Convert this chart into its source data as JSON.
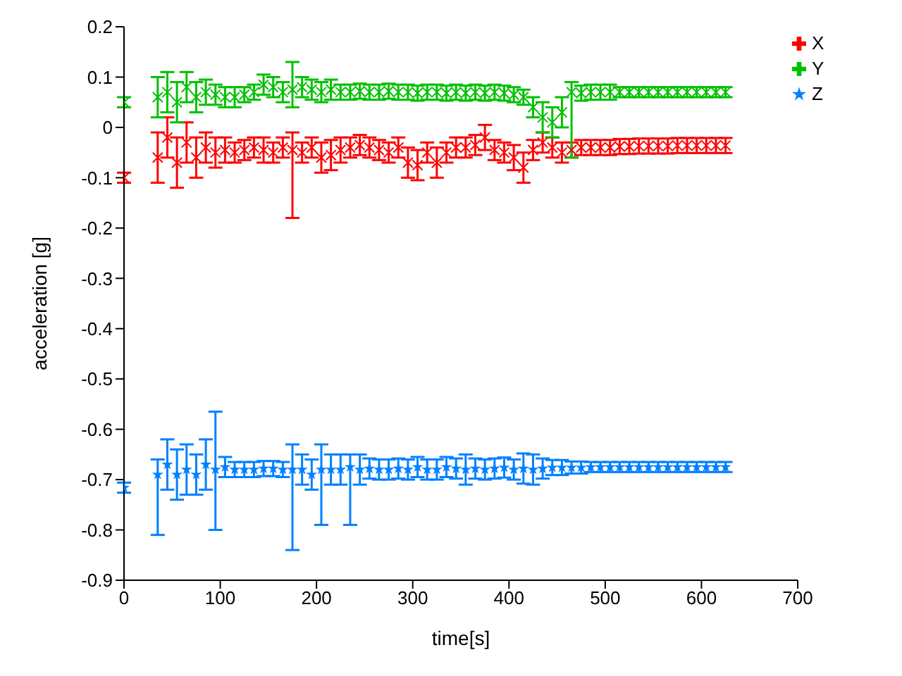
{
  "chart_data": {
    "type": "scatter",
    "xlabel": "time[s]",
    "ylabel": "acceleration [g]",
    "x": [
      0,
      35,
      45,
      55,
      65,
      75,
      85,
      95,
      105,
      115,
      125,
      135,
      145,
      155,
      165,
      175,
      185,
      195,
      205,
      215,
      225,
      235,
      245,
      255,
      265,
      275,
      285,
      295,
      305,
      315,
      325,
      335,
      345,
      355,
      365,
      375,
      385,
      395,
      405,
      415,
      425,
      435,
      445,
      455,
      465,
      475,
      485,
      495,
      505,
      515,
      525,
      535,
      545,
      555,
      565,
      575,
      585,
      595,
      605,
      615,
      625
    ],
    "series": [
      {
        "name": "X",
        "color": "#ff0000",
        "marker": "cross",
        "values": [
          -0.1,
          -0.06,
          -0.02,
          -0.07,
          -0.03,
          -0.06,
          -0.04,
          -0.05,
          -0.045,
          -0.05,
          -0.045,
          -0.04,
          -0.045,
          -0.05,
          -0.04,
          -0.045,
          -0.05,
          -0.04,
          -0.06,
          -0.055,
          -0.045,
          -0.04,
          -0.035,
          -0.04,
          -0.045,
          -0.05,
          -0.04,
          -0.07,
          -0.075,
          -0.05,
          -0.07,
          -0.05,
          -0.04,
          -0.04,
          -0.035,
          -0.02,
          -0.045,
          -0.05,
          -0.06,
          -0.08,
          -0.045,
          -0.03,
          -0.04,
          -0.05,
          -0.045,
          -0.04,
          -0.04,
          -0.04,
          -0.04,
          -0.038,
          -0.038,
          -0.037,
          -0.037,
          -0.037,
          -0.037,
          -0.036,
          -0.036,
          -0.036,
          -0.036,
          -0.036,
          -0.036
        ],
        "errors": [
          0.01,
          0.05,
          0.04,
          0.05,
          0.04,
          0.04,
          0.03,
          0.03,
          0.025,
          0.02,
          0.02,
          0.02,
          0.025,
          0.02,
          0.02,
          [
            -0.18,
            -0.01
          ],
          0.02,
          0.02,
          0.03,
          0.03,
          0.025,
          0.02,
          0.02,
          0.02,
          0.02,
          0.02,
          0.02,
          0.03,
          0.03,
          0.02,
          0.03,
          0.02,
          0.02,
          0.02,
          0.02,
          0.025,
          0.02,
          0.02,
          0.025,
          0.03,
          0.02,
          0.02,
          0.02,
          0.02,
          0.015,
          0.015,
          0.015,
          0.015,
          0.015,
          0.015,
          0.015,
          0.015,
          0.015,
          0.015,
          0.015,
          0.015,
          0.015,
          0.015,
          0.015,
          0.015,
          0.015
        ]
      },
      {
        "name": "Y",
        "color": "#00c000",
        "marker": "cross",
        "values": [
          0.05,
          0.06,
          0.07,
          0.05,
          0.08,
          0.06,
          0.07,
          0.065,
          0.06,
          0.06,
          0.065,
          0.07,
          0.085,
          0.08,
          0.07,
          0.075,
          0.08,
          0.075,
          0.07,
          0.075,
          0.07,
          0.07,
          0.072,
          0.07,
          0.07,
          0.072,
          0.07,
          0.07,
          0.068,
          0.07,
          0.07,
          0.068,
          0.07,
          0.068,
          0.07,
          0.068,
          0.07,
          0.068,
          0.065,
          0.06,
          0.04,
          0.02,
          0.01,
          0.03,
          0.07,
          0.068,
          0.07,
          0.07,
          0.07,
          0.07,
          0.07,
          0.07,
          0.07,
          0.07,
          0.07,
          0.07,
          0.07,
          0.07,
          0.07,
          0.07,
          0.07
        ],
        "errors": [
          0.01,
          0.04,
          0.04,
          0.04,
          0.03,
          0.03,
          0.025,
          0.02,
          0.02,
          0.02,
          0.015,
          0.015,
          0.02,
          0.02,
          0.02,
          [
            0.04,
            0.13
          ],
          0.02,
          0.02,
          0.02,
          0.02,
          0.015,
          0.015,
          0.015,
          0.015,
          0.015,
          0.015,
          0.015,
          0.015,
          0.015,
          0.015,
          0.015,
          0.015,
          0.015,
          0.015,
          0.015,
          0.015,
          0.015,
          0.015,
          0.015,
          0.015,
          0.02,
          0.03,
          0.03,
          0.03,
          [
            -0.06,
            0.09
          ],
          0.015,
          0.015,
          0.015,
          0.015,
          0.01,
          0.01,
          0.01,
          0.01,
          0.01,
          0.01,
          0.01,
          0.01,
          0.01,
          0.01,
          0.01,
          0.01
        ]
      },
      {
        "name": "Z",
        "color": "#0080ff",
        "marker": "star",
        "values": [
          -0.716,
          -0.69,
          -0.67,
          -0.69,
          -0.68,
          -0.69,
          -0.67,
          -0.68,
          -0.675,
          -0.68,
          -0.68,
          -0.68,
          -0.678,
          -0.678,
          -0.68,
          -0.68,
          -0.68,
          -0.69,
          -0.68,
          -0.68,
          -0.68,
          -0.675,
          -0.68,
          -0.678,
          -0.68,
          -0.68,
          -0.678,
          -0.68,
          -0.675,
          -0.68,
          -0.68,
          -0.675,
          -0.678,
          -0.68,
          -0.678,
          -0.68,
          -0.678,
          -0.676,
          -0.68,
          -0.678,
          -0.68,
          -0.678,
          -0.676,
          -0.676,
          -0.676,
          -0.676,
          -0.675,
          -0.675,
          -0.675,
          -0.675,
          -0.675,
          -0.675,
          -0.675,
          -0.675,
          -0.675,
          -0.675,
          -0.675,
          -0.675,
          -0.675,
          -0.675,
          -0.675
        ],
        "errors": [
          0.01,
          [
            -0.81,
            -0.66
          ],
          0.05,
          0.05,
          0.05,
          0.04,
          0.05,
          [
            -0.8,
            -0.565
          ],
          0.02,
          0.015,
          0.015,
          0.015,
          0.015,
          0.015,
          0.015,
          [
            -0.84,
            -0.63
          ],
          0.03,
          0.03,
          [
            -0.79,
            -0.63
          ],
          0.03,
          0.03,
          [
            -0.79,
            -0.65
          ],
          0.03,
          0.02,
          0.02,
          0.02,
          0.02,
          0.02,
          0.02,
          0.02,
          0.02,
          0.02,
          0.02,
          0.03,
          0.02,
          0.02,
          0.02,
          0.02,
          0.02,
          0.03,
          0.03,
          0.02,
          0.015,
          0.015,
          0.012,
          0.012,
          0.01,
          0.01,
          0.01,
          0.01,
          0.01,
          0.01,
          0.01,
          0.01,
          0.01,
          0.01,
          0.01,
          0.01,
          0.01,
          0.01,
          0.01
        ]
      }
    ],
    "xlim": [
      0,
      700
    ],
    "xticks": [
      0,
      100,
      200,
      300,
      400,
      500,
      600,
      700
    ],
    "ylim": [
      -0.9,
      0.2
    ],
    "yticks": [
      -0.9,
      -0.8,
      -0.7,
      -0.6,
      -0.5,
      -0.4,
      -0.3,
      -0.2,
      -0.1,
      0,
      0.1,
      0.2
    ],
    "legend": "top right"
  }
}
